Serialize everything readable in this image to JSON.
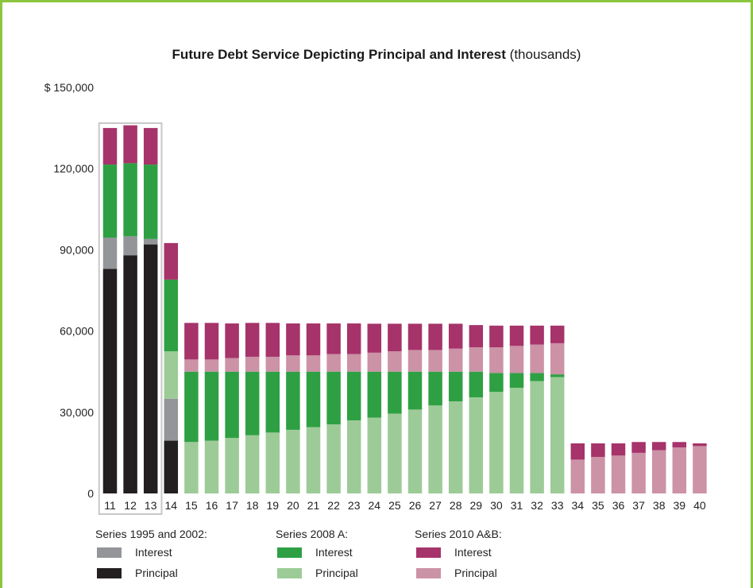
{
  "chart_data": {
    "type": "bar",
    "stacked": true,
    "title_bold": "Future Debt Service Depicting Principal and Interest",
    "title_rest": " (thousands)",
    "y_ticks": [
      "$ 150,000",
      "120,000",
      "90,000",
      "60,000",
      "30,000",
      "0"
    ],
    "ylim": [
      0,
      150000
    ],
    "categories": [
      "11",
      "12",
      "13",
      "14",
      "15",
      "16",
      "17",
      "18",
      "19",
      "20",
      "21",
      "22",
      "23",
      "24",
      "25",
      "26",
      "27",
      "28",
      "29",
      "30",
      "31",
      "32",
      "33",
      "34",
      "35",
      "36",
      "37",
      "38",
      "39",
      "40"
    ],
    "series": [
      {
        "group": "Series 1995 and 2002",
        "name": "Principal",
        "color": "#231f20",
        "values": [
          83000,
          88000,
          92000,
          19500,
          0,
          0,
          0,
          0,
          0,
          0,
          0,
          0,
          0,
          0,
          0,
          0,
          0,
          0,
          0,
          0,
          0,
          0,
          0,
          0,
          0,
          0,
          0,
          0,
          0,
          0
        ]
      },
      {
        "group": "Series 1995 and 2002",
        "name": "Interest",
        "color": "#939598",
        "values": [
          11500,
          7000,
          2000,
          15500,
          0,
          0,
          0,
          0,
          0,
          0,
          0,
          0,
          0,
          0,
          0,
          0,
          0,
          0,
          0,
          0,
          0,
          0,
          0,
          0,
          0,
          0,
          0,
          0,
          0,
          0
        ]
      },
      {
        "group": "Series 2008 A",
        "name": "Principal",
        "color": "#9dcb97",
        "values": [
          0,
          0,
          0,
          17500,
          19000,
          19500,
          20500,
          21500,
          22500,
          23500,
          24500,
          25500,
          27000,
          28000,
          29500,
          31000,
          32500,
          34000,
          35500,
          37500,
          39000,
          41500,
          43000,
          0,
          0,
          0,
          0,
          0,
          0,
          0
        ]
      },
      {
        "group": "Series 2008 A",
        "name": "Interest",
        "color": "#2ea043",
        "values": [
          27000,
          27000,
          27500,
          26500,
          26000,
          25500,
          24500,
          23500,
          22500,
          21500,
          20500,
          19500,
          18000,
          17000,
          15500,
          14000,
          12500,
          11000,
          9500,
          7000,
          5500,
          3000,
          1000,
          0,
          0,
          0,
          0,
          0,
          0,
          0
        ]
      },
      {
        "group": "Series 2010 A&B",
        "name": "Principal",
        "color": "#cc92a6",
        "values": [
          0,
          0,
          0,
          0,
          4500,
          4500,
          5000,
          5500,
          5500,
          6000,
          6000,
          6500,
          6500,
          7000,
          7500,
          8000,
          8000,
          8500,
          9000,
          9500,
          10000,
          10500,
          11500,
          12500,
          13500,
          14000,
          15000,
          16000,
          17000,
          17500
        ]
      },
      {
        "group": "Series 2010 A&B",
        "name": "Interest",
        "color": "#a6336a",
        "values": [
          13500,
          14000,
          13500,
          13500,
          13500,
          13500,
          12800,
          12500,
          12500,
          11800,
          11800,
          11300,
          11300,
          10700,
          10200,
          9700,
          9700,
          9200,
          8200,
          8000,
          7500,
          7000,
          6500,
          6000,
          5000,
          4500,
          4000,
          3000,
          2000,
          1000
        ]
      }
    ],
    "highlight_categories": [
      "11",
      "12",
      "13"
    ],
    "legend_groups": [
      {
        "title": "Series 1995 and 2002:",
        "items": [
          {
            "label": "Interest",
            "color": "#939598"
          },
          {
            "label": "Principal",
            "color": "#231f20"
          }
        ]
      },
      {
        "title": "Series 2008 A:",
        "items": [
          {
            "label": "Interest",
            "color": "#2ea043"
          },
          {
            "label": "Principal",
            "color": "#9dcb97"
          }
        ]
      },
      {
        "title": "Series 2010 A&B:",
        "items": [
          {
            "label": "Interest",
            "color": "#a6336a"
          },
          {
            "label": "Principal",
            "color": "#cc92a6"
          }
        ]
      }
    ]
  }
}
